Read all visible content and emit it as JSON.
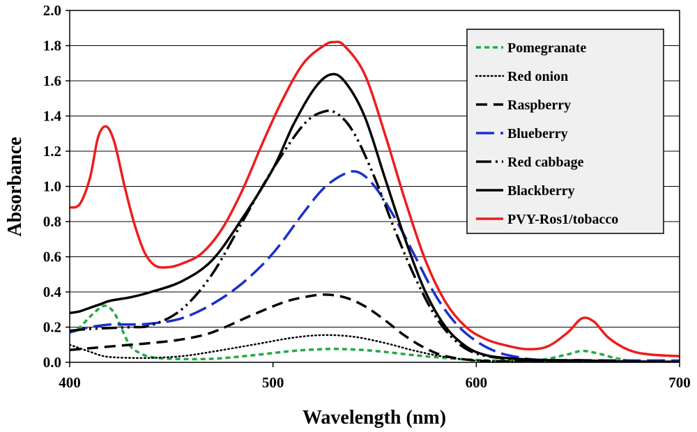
{
  "chart_data": {
    "type": "line",
    "title": "",
    "xlabel": "Wavelength (nm)",
    "ylabel": "Absorbance",
    "xlim": [
      400,
      700
    ],
    "ylim": [
      0,
      2.0
    ],
    "x_ticks": [
      "400",
      "500",
      "600",
      "700"
    ],
    "y_ticks": [
      "0.0",
      "0.2",
      "0.4",
      "0.6",
      "0.8",
      "1.0",
      "1.2",
      "1.4",
      "1.6",
      "1.8",
      "2.0"
    ],
    "grid": "horizontal",
    "legend_position": "top-right",
    "series": [
      {
        "name": "Pomegranate",
        "color": "#22aa44",
        "style": "short-dash",
        "points": [
          [
            400,
            0.17
          ],
          [
            405,
            0.2
          ],
          [
            410,
            0.26
          ],
          [
            415,
            0.31
          ],
          [
            418,
            0.32
          ],
          [
            422,
            0.28
          ],
          [
            426,
            0.18
          ],
          [
            430,
            0.09
          ],
          [
            435,
            0.05
          ],
          [
            440,
            0.03
          ],
          [
            450,
            0.02
          ],
          [
            470,
            0.02
          ],
          [
            490,
            0.04
          ],
          [
            510,
            0.065
          ],
          [
            525,
            0.075
          ],
          [
            535,
            0.075
          ],
          [
            550,
            0.065
          ],
          [
            570,
            0.04
          ],
          [
            590,
            0.02
          ],
          [
            610,
            0.01
          ],
          [
            630,
            0.012
          ],
          [
            645,
            0.045
          ],
          [
            652,
            0.065
          ],
          [
            660,
            0.05
          ],
          [
            670,
            0.02
          ],
          [
            680,
            0.005
          ],
          [
            700,
            0.003
          ]
        ]
      },
      {
        "name": "Red onion",
        "color": "#000000",
        "style": "dotted",
        "points": [
          [
            400,
            0.1
          ],
          [
            405,
            0.08
          ],
          [
            410,
            0.06
          ],
          [
            415,
            0.04
          ],
          [
            420,
            0.03
          ],
          [
            430,
            0.025
          ],
          [
            440,
            0.025
          ],
          [
            455,
            0.035
          ],
          [
            470,
            0.06
          ],
          [
            490,
            0.1
          ],
          [
            510,
            0.14
          ],
          [
            525,
            0.155
          ],
          [
            540,
            0.145
          ],
          [
            555,
            0.11
          ],
          [
            570,
            0.065
          ],
          [
            585,
            0.03
          ],
          [
            600,
            0.01
          ],
          [
            620,
            0.005
          ],
          [
            650,
            0.003
          ],
          [
            700,
            0.002
          ]
        ]
      },
      {
        "name": "Raspberry",
        "color": "#000000",
        "style": "dashed",
        "points": [
          [
            400,
            0.07
          ],
          [
            410,
            0.08
          ],
          [
            420,
            0.09
          ],
          [
            430,
            0.1
          ],
          [
            440,
            0.11
          ],
          [
            455,
            0.13
          ],
          [
            470,
            0.17
          ],
          [
            490,
            0.27
          ],
          [
            505,
            0.34
          ],
          [
            515,
            0.37
          ],
          [
            525,
            0.385
          ],
          [
            535,
            0.37
          ],
          [
            545,
            0.32
          ],
          [
            555,
            0.24
          ],
          [
            565,
            0.15
          ],
          [
            575,
            0.08
          ],
          [
            585,
            0.035
          ],
          [
            600,
            0.01
          ],
          [
            620,
            0.005
          ],
          [
            650,
            0.003
          ],
          [
            700,
            0.002
          ]
        ]
      },
      {
        "name": "Blueberry",
        "color": "#1a2fcc",
        "style": "long-dash",
        "points": [
          [
            400,
            0.17
          ],
          [
            410,
            0.2
          ],
          [
            420,
            0.215
          ],
          [
            430,
            0.215
          ],
          [
            440,
            0.22
          ],
          [
            455,
            0.25
          ],
          [
            470,
            0.33
          ],
          [
            485,
            0.45
          ],
          [
            500,
            0.62
          ],
          [
            515,
            0.85
          ],
          [
            525,
            0.99
          ],
          [
            535,
            1.07
          ],
          [
            542,
            1.08
          ],
          [
            550,
            1.0
          ],
          [
            560,
            0.82
          ],
          [
            570,
            0.6
          ],
          [
            580,
            0.38
          ],
          [
            590,
            0.22
          ],
          [
            600,
            0.12
          ],
          [
            610,
            0.06
          ],
          [
            620,
            0.03
          ],
          [
            630,
            0.015
          ],
          [
            650,
            0.012
          ],
          [
            700,
            0.01
          ]
        ]
      },
      {
        "name": "Red cabbage",
        "color": "#000000",
        "style": "dash-dot-dot",
        "points": [
          [
            400,
            0.18
          ],
          [
            410,
            0.19
          ],
          [
            420,
            0.195
          ],
          [
            430,
            0.2
          ],
          [
            440,
            0.21
          ],
          [
            455,
            0.3
          ],
          [
            470,
            0.5
          ],
          [
            485,
            0.8
          ],
          [
            500,
            1.1
          ],
          [
            515,
            1.35
          ],
          [
            525,
            1.425
          ],
          [
            532,
            1.41
          ],
          [
            540,
            1.3
          ],
          [
            550,
            1.05
          ],
          [
            560,
            0.75
          ],
          [
            570,
            0.48
          ],
          [
            580,
            0.26
          ],
          [
            590,
            0.12
          ],
          [
            600,
            0.05
          ],
          [
            615,
            0.02
          ],
          [
            630,
            0.01
          ],
          [
            660,
            0.005
          ],
          [
            700,
            0.003
          ]
        ]
      },
      {
        "name": "Blackberry",
        "color": "#000000",
        "style": "solid",
        "points": [
          [
            400,
            0.28
          ],
          [
            405,
            0.29
          ],
          [
            410,
            0.31
          ],
          [
            415,
            0.33
          ],
          [
            420,
            0.35
          ],
          [
            430,
            0.37
          ],
          [
            440,
            0.4
          ],
          [
            455,
            0.46
          ],
          [
            470,
            0.58
          ],
          [
            485,
            0.82
          ],
          [
            500,
            1.1
          ],
          [
            510,
            1.35
          ],
          [
            520,
            1.55
          ],
          [
            528,
            1.635
          ],
          [
            535,
            1.6
          ],
          [
            545,
            1.4
          ],
          [
            555,
            1.05
          ],
          [
            565,
            0.7
          ],
          [
            575,
            0.4
          ],
          [
            585,
            0.2
          ],
          [
            595,
            0.09
          ],
          [
            605,
            0.04
          ],
          [
            620,
            0.02
          ],
          [
            640,
            0.01
          ],
          [
            650,
            0.012
          ],
          [
            670,
            0.005
          ],
          [
            700,
            0.003
          ]
        ]
      },
      {
        "name": "PVY-Ros1/tobacco",
        "color": "#ee1c1c",
        "style": "solid",
        "points": [
          [
            400,
            0.88
          ],
          [
            405,
            0.9
          ],
          [
            410,
            1.05
          ],
          [
            414,
            1.28
          ],
          [
            418,
            1.34
          ],
          [
            422,
            1.25
          ],
          [
            427,
            1.0
          ],
          [
            432,
            0.78
          ],
          [
            437,
            0.62
          ],
          [
            442,
            0.55
          ],
          [
            448,
            0.54
          ],
          [
            455,
            0.56
          ],
          [
            465,
            0.62
          ],
          [
            475,
            0.76
          ],
          [
            485,
            0.98
          ],
          [
            495,
            1.25
          ],
          [
            505,
            1.5
          ],
          [
            515,
            1.7
          ],
          [
            525,
            1.8
          ],
          [
            530,
            1.82
          ],
          [
            535,
            1.8
          ],
          [
            545,
            1.64
          ],
          [
            555,
            1.3
          ],
          [
            565,
            0.92
          ],
          [
            575,
            0.58
          ],
          [
            585,
            0.34
          ],
          [
            595,
            0.2
          ],
          [
            605,
            0.13
          ],
          [
            615,
            0.095
          ],
          [
            625,
            0.075
          ],
          [
            635,
            0.09
          ],
          [
            645,
            0.17
          ],
          [
            652,
            0.25
          ],
          [
            658,
            0.23
          ],
          [
            665,
            0.14
          ],
          [
            675,
            0.07
          ],
          [
            685,
            0.045
          ],
          [
            700,
            0.035
          ]
        ]
      }
    ]
  }
}
